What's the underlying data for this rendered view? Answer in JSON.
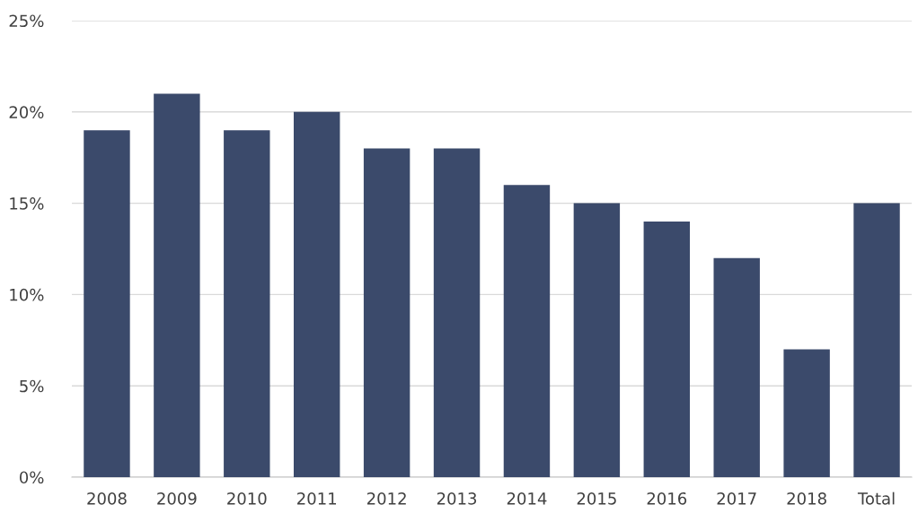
{
  "chart_data": {
    "type": "bar",
    "categories": [
      "2008",
      "2009",
      "2010",
      "2011",
      "2012",
      "2013",
      "2014",
      "2015",
      "2016",
      "2017",
      "2018",
      "Total"
    ],
    "values": [
      19,
      21,
      19,
      20,
      18,
      18,
      16,
      15,
      14,
      12,
      7,
      15
    ],
    "color": "#3b4a6b",
    "ylim": [
      0,
      25
    ],
    "yticks": [
      {
        "value": 0,
        "label": "0%"
      },
      {
        "value": 5,
        "label": "5%"
      },
      {
        "value": 10,
        "label": "10%"
      },
      {
        "value": 15,
        "label": "15%"
      },
      {
        "value": 20,
        "label": "20%"
      },
      {
        "value": 25,
        "label": "25%"
      }
    ],
    "grid": "y"
  }
}
